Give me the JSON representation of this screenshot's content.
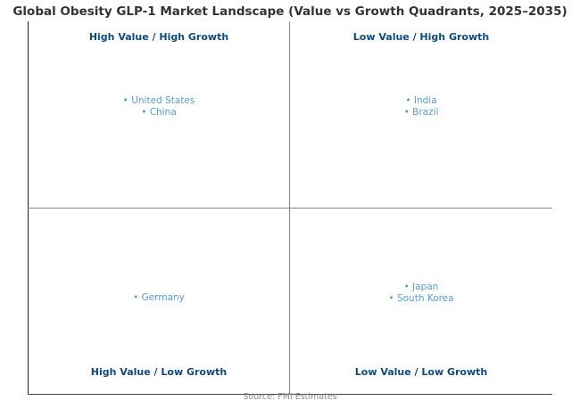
{
  "chart_data": {
    "type": "quadrant",
    "title": "Global Obesity GLP-1 Market Landscape (Value vs Growth Quadrants, 2025–2035)",
    "source": "Source: FMI Estimates",
    "quadrants": [
      {
        "label": "High Value / High Growth",
        "position": "top-left",
        "items": [
          "United States",
          "China"
        ]
      },
      {
        "label": "Low Value / High Growth",
        "position": "top-right",
        "items": [
          "India",
          "Brazil"
        ]
      },
      {
        "label": "High Value / Low Growth",
        "position": "bottom-left",
        "items": [
          "Germany"
        ]
      },
      {
        "label": "Low Value / Low Growth",
        "position": "bottom-right",
        "items": [
          "Japan",
          "South Korea"
        ]
      }
    ],
    "colors": {
      "label": "#0d4a80",
      "item": "#5b9bd5",
      "divider": "#888888"
    }
  }
}
